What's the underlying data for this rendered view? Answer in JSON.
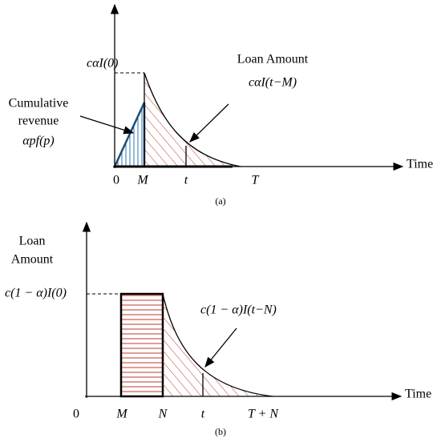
{
  "panel_a": {
    "initial_label": "cαI(0)",
    "loan_title": "Loan Amount",
    "loan_label": "cαI(t−M)",
    "revenue_title": [
      "Cumulative",
      "revenue"
    ],
    "revenue_label": "αpf(p)",
    "x_labels": [
      "0",
      "M",
      "t",
      "T"
    ],
    "x_axis_title": "Time",
    "caption": "(a)"
  },
  "panel_b": {
    "y_axis_title": [
      "Loan",
      "Amount"
    ],
    "initial_label": "c(1 − α)I(0)",
    "loan_label": "c(1 − α)I(t−N)",
    "x_labels": [
      "0",
      "M",
      "N",
      "t",
      "T + N"
    ],
    "x_axis_title": "Time",
    "caption": "(b)"
  }
}
